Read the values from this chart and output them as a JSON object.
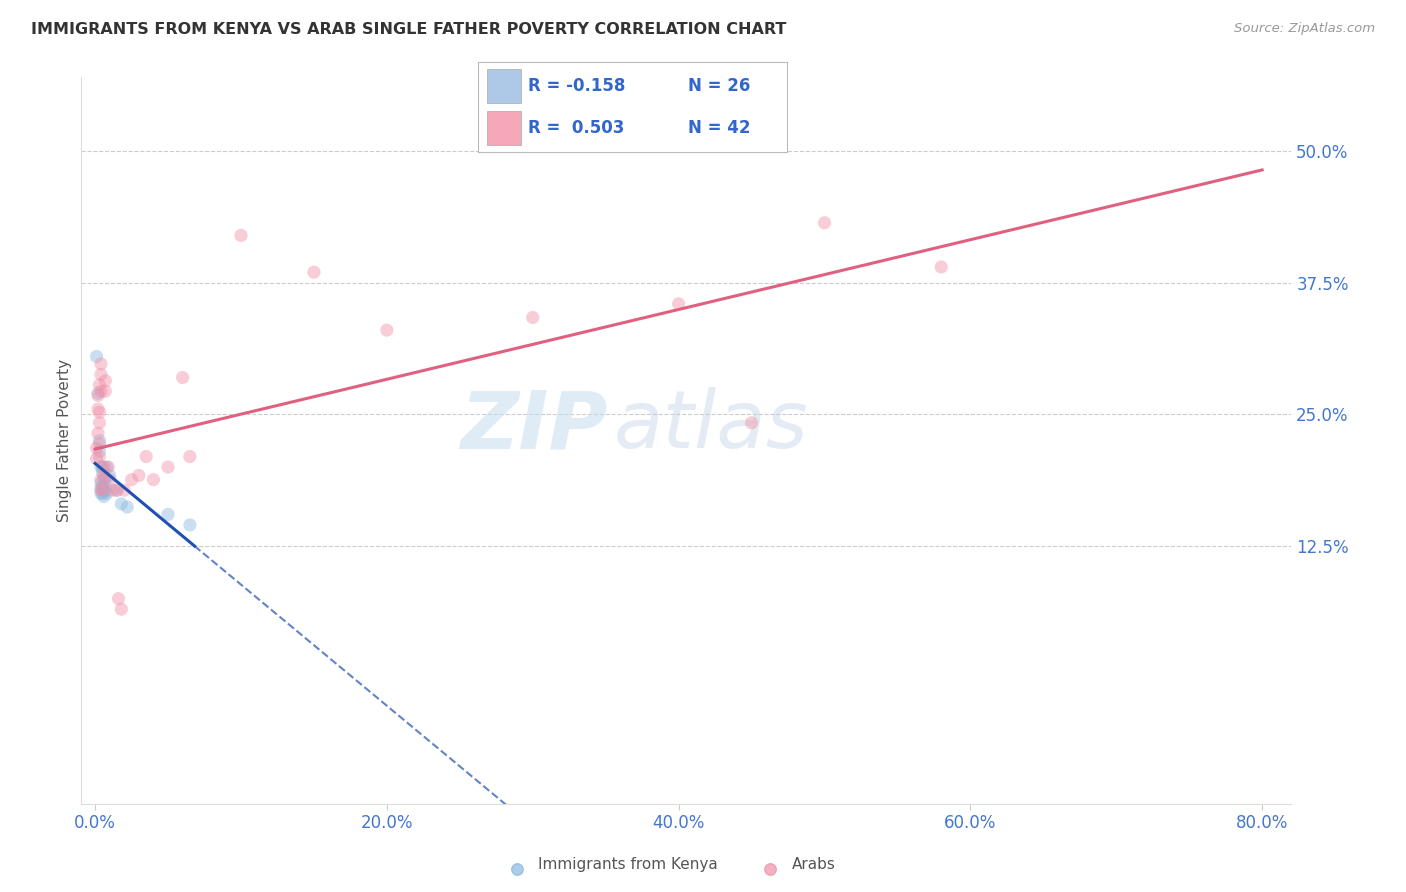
{
  "title": "IMMIGRANTS FROM KENYA VS ARAB SINGLE FATHER POVERTY CORRELATION CHART",
  "source": "Source: ZipAtlas.com",
  "ylabel": "Single Father Poverty",
  "x_tick_labels": [
    "0.0%",
    "20.0%",
    "40.0%",
    "60.0%",
    "80.0%"
  ],
  "x_tick_vals": [
    0.0,
    0.2,
    0.4,
    0.6,
    0.8
  ],
  "y_tick_labels_right": [
    "50.0%",
    "37.5%",
    "25.0%",
    "12.5%"
  ],
  "y_tick_vals": [
    0.5,
    0.375,
    0.25,
    0.125
  ],
  "xlim": [
    -0.01,
    0.82
  ],
  "ylim": [
    -0.12,
    0.57
  ],
  "kenya_color": "#89b8e0",
  "arab_color": "#f090a8",
  "kenya_line_color": "#2050b0",
  "arab_line_color": "#e06080",
  "marker_size": 90,
  "marker_alpha": 0.45,
  "fig_width": 14.06,
  "fig_height": 8.92,
  "dpi": 100,
  "background_color": "#ffffff",
  "grid_color": "#cccccc",
  "title_color": "#333333",
  "axis_label_color": "#4477cc",
  "legend_box_color": "#aec8e8",
  "legend_pink_color": "#f4a8b8",
  "kenya_points": [
    [
      0.001,
      0.305
    ],
    [
      0.002,
      0.27
    ],
    [
      0.003,
      0.225
    ],
    [
      0.003,
      0.215
    ],
    [
      0.004,
      0.2
    ],
    [
      0.004,
      0.185
    ],
    [
      0.004,
      0.18
    ],
    [
      0.004,
      0.175
    ],
    [
      0.005,
      0.2
    ],
    [
      0.005,
      0.195
    ],
    [
      0.005,
      0.182
    ],
    [
      0.005,
      0.175
    ],
    [
      0.006,
      0.188
    ],
    [
      0.006,
      0.178
    ],
    [
      0.006,
      0.172
    ],
    [
      0.007,
      0.19
    ],
    [
      0.007,
      0.182
    ],
    [
      0.007,
      0.178
    ],
    [
      0.008,
      0.2
    ],
    [
      0.008,
      0.175
    ],
    [
      0.01,
      0.192
    ],
    [
      0.015,
      0.178
    ],
    [
      0.018,
      0.165
    ],
    [
      0.022,
      0.162
    ],
    [
      0.05,
      0.155
    ],
    [
      0.065,
      0.145
    ]
  ],
  "arab_points": [
    [
      0.001,
      0.218
    ],
    [
      0.001,
      0.208
    ],
    [
      0.002,
      0.268
    ],
    [
      0.002,
      0.255
    ],
    [
      0.002,
      0.232
    ],
    [
      0.003,
      0.278
    ],
    [
      0.003,
      0.252
    ],
    [
      0.003,
      0.242
    ],
    [
      0.003,
      0.222
    ],
    [
      0.003,
      0.21
    ],
    [
      0.004,
      0.298
    ],
    [
      0.004,
      0.288
    ],
    [
      0.004,
      0.272
    ],
    [
      0.004,
      0.188
    ],
    [
      0.004,
      0.178
    ],
    [
      0.005,
      0.178
    ],
    [
      0.006,
      0.2
    ],
    [
      0.006,
      0.192
    ],
    [
      0.007,
      0.282
    ],
    [
      0.007,
      0.272
    ],
    [
      0.009,
      0.2
    ],
    [
      0.01,
      0.188
    ],
    [
      0.012,
      0.178
    ],
    [
      0.015,
      0.178
    ],
    [
      0.016,
      0.075
    ],
    [
      0.018,
      0.065
    ],
    [
      0.02,
      0.178
    ],
    [
      0.025,
      0.188
    ],
    [
      0.03,
      0.192
    ],
    [
      0.035,
      0.21
    ],
    [
      0.04,
      0.188
    ],
    [
      0.05,
      0.2
    ],
    [
      0.06,
      0.285
    ],
    [
      0.065,
      0.21
    ],
    [
      0.1,
      0.42
    ],
    [
      0.15,
      0.385
    ],
    [
      0.2,
      0.33
    ],
    [
      0.3,
      0.342
    ],
    [
      0.4,
      0.355
    ],
    [
      0.45,
      0.242
    ],
    [
      0.5,
      0.432
    ],
    [
      0.58,
      0.39
    ]
  ],
  "watermark_zip": "ZIP",
  "watermark_atlas": "atlas",
  "legend_r1": "R = -0.158",
  "legend_n1": "N = 26",
  "legend_r2": "R =  0.503",
  "legend_n2": "N = 42"
}
